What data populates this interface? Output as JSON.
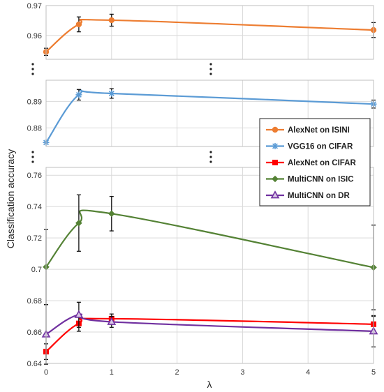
{
  "chart_data": {
    "type": "line",
    "xlabel": "λ",
    "ylabel": "Classification accuracy",
    "x": [
      0,
      0.5,
      1,
      5
    ],
    "x_ticks": [
      "0",
      "1",
      "2",
      "3",
      "4",
      "5"
    ],
    "panels": [
      {
        "ylim": [
          0.952,
          0.97
        ],
        "y_ticks": [
          "0.96",
          "0.97"
        ]
      },
      {
        "ylim": [
          0.873,
          0.898
        ],
        "y_ticks": [
          "0.88",
          "0.89"
        ]
      },
      {
        "ylim": [
          0.64,
          0.765
        ],
        "y_ticks": [
          "0.64",
          "0.66",
          "0.68",
          "0.7",
          "0.72",
          "0.74",
          "0.76"
        ]
      }
    ],
    "series": [
      {
        "name": "AlexNet on ISINI",
        "panel": 0,
        "color": "#ED7D31",
        "marker": "circle",
        "values": [
          0.9545,
          0.9637,
          0.9651,
          0.9618
        ],
        "errors": [
          0.0012,
          0.0025,
          0.002,
          0.0025
        ]
      },
      {
        "name": "VGG16 on CIFAR",
        "panel": 1,
        "color": "#5B9BD5",
        "marker": "star",
        "values": [
          0.8745,
          0.8925,
          0.893,
          0.889
        ],
        "errors": [
          0.0,
          0.002,
          0.0018,
          0.0015
        ]
      },
      {
        "name": "AlexNet on CIFAR",
        "panel": 2,
        "color": "#FF0000",
        "marker": "square",
        "values": [
          0.6475,
          0.6655,
          0.6685,
          0.665
        ],
        "errors": [
          0.005,
          0.005,
          0.003,
          0.005
        ]
      },
      {
        "name": "MultiCNN on ISIC",
        "panel": 2,
        "color": "#548235",
        "marker": "diamond",
        "values": [
          0.7015,
          0.7295,
          0.7355,
          0.7012
        ],
        "errors": [
          0.024,
          0.018,
          0.011,
          0.027
        ]
      },
      {
        "name": "MultiCNN on DR",
        "panel": 2,
        "color": "#7030A0",
        "marker": "triangle",
        "values": [
          0.6585,
          0.671,
          0.6665,
          0.6605
        ],
        "errors": [
          0.019,
          0.008,
          0.0035,
          0.01
        ]
      }
    ],
    "legend": {
      "position": "center-right"
    },
    "grid": true
  }
}
